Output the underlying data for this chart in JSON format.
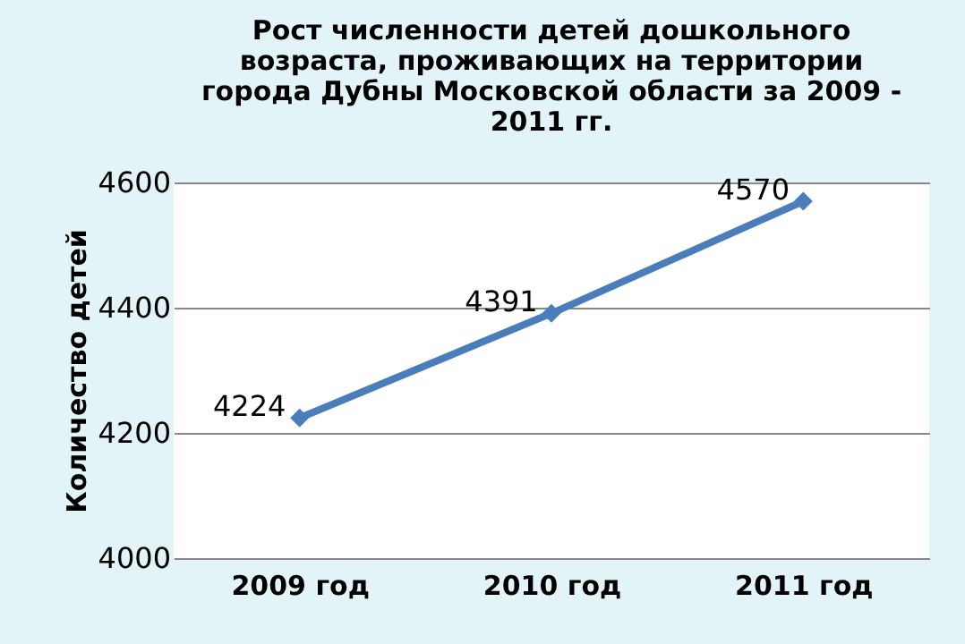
{
  "chart_data": {
    "type": "line",
    "title": "Рост численности детей дошкольного\nвозраста, проживающих на территории\nгорода Дубны Московской области за 2009 -\n2011 гг.",
    "ylabel": "Количество детей",
    "categories": [
      "2009 год",
      "2010 год",
      "2011 год"
    ],
    "series": [
      {
        "color": "#4a7ebb",
        "values": [
          4224,
          4391,
          4570
        ]
      }
    ],
    "ylim": [
      4000,
      4600
    ],
    "yticks": [
      4000,
      4200,
      4400,
      4600
    ],
    "grid": "y",
    "marker": "diamond",
    "line_style": "solid",
    "data_labels": true
  }
}
